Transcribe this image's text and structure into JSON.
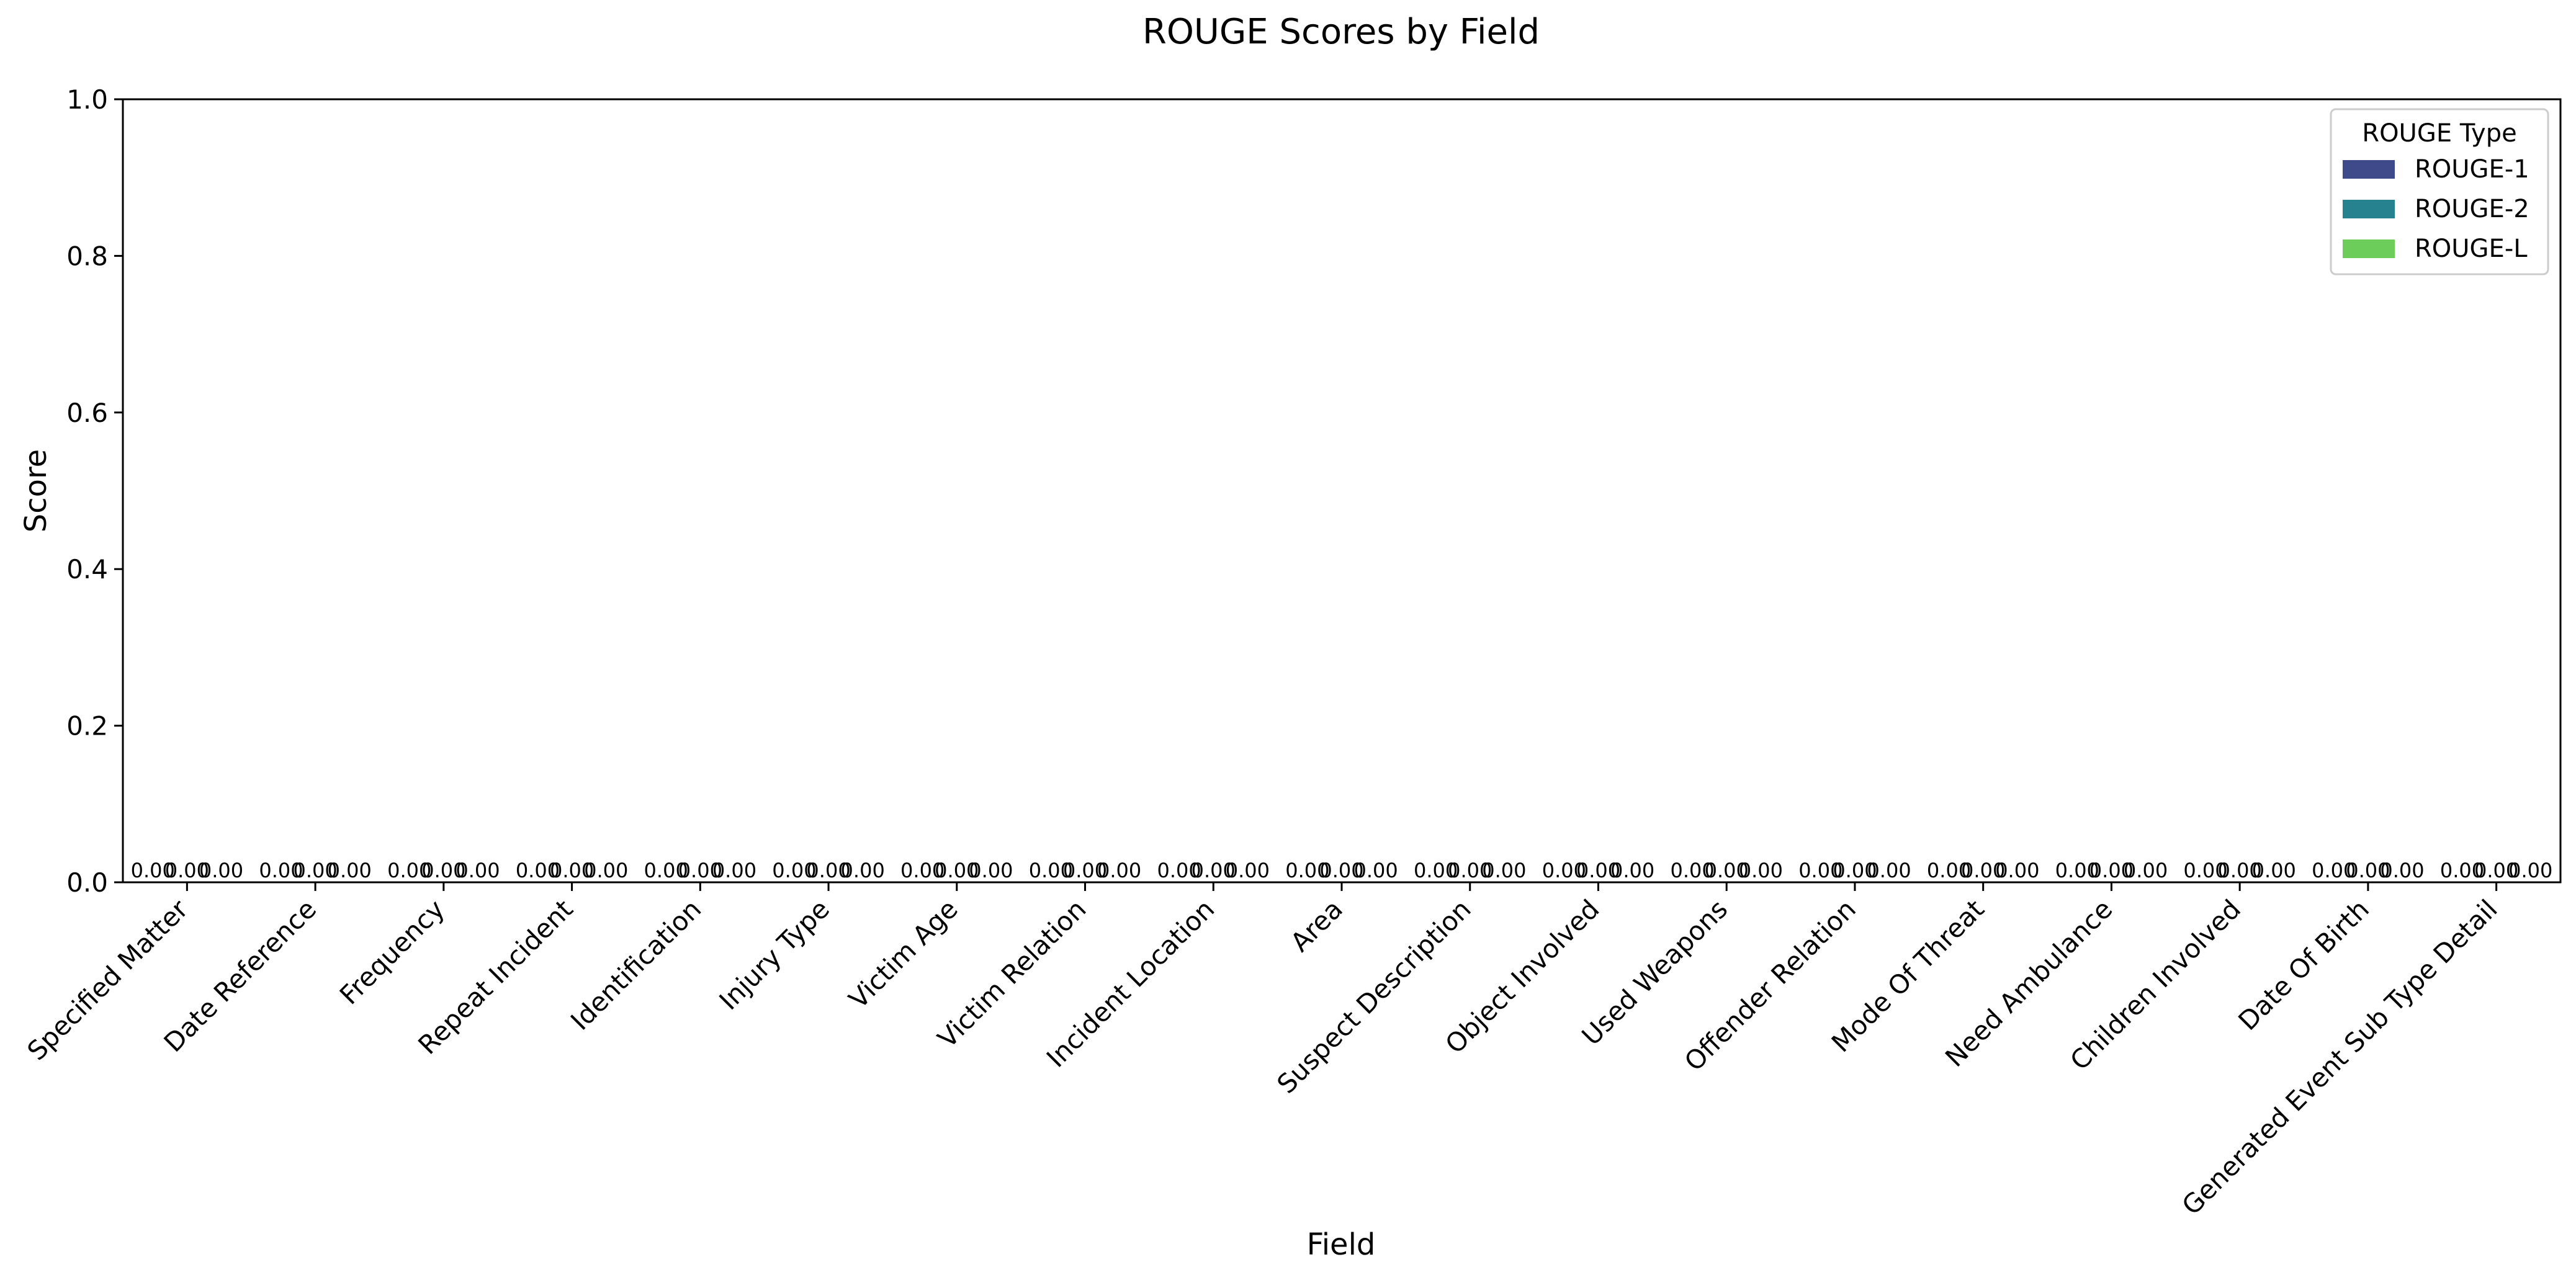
{
  "chart_data": {
    "type": "bar",
    "title": "ROUGE Scores by Field",
    "xlabel": "Field",
    "ylabel": "Score",
    "ylim": [
      0,
      1
    ],
    "yticks": [
      "0.0",
      "0.2",
      "0.4",
      "0.6",
      "0.8",
      "1.0"
    ],
    "categories": [
      "Specified Matter",
      "Date Reference",
      "Frequency",
      "Repeat Incident",
      "Identification",
      "Injury Type",
      "Victim Age",
      "Victim Relation",
      "Incident Location",
      "Area",
      "Suspect Description",
      "Object Involved",
      "Used Weapons",
      "Offender Relation",
      "Mode Of Threat",
      "Need Ambulance",
      "Children Involved",
      "Date Of Birth",
      "Generated Event Sub Type Detail"
    ],
    "legend": {
      "title": "ROUGE Type",
      "position": "top-right"
    },
    "series": [
      {
        "name": "ROUGE-1",
        "color": "#3e4a89",
        "values": [
          0,
          0,
          0,
          0,
          0,
          0,
          0,
          0,
          0,
          0,
          0,
          0,
          0,
          0,
          0,
          0,
          0,
          0,
          0
        ]
      },
      {
        "name": "ROUGE-2",
        "color": "#26828e",
        "values": [
          0,
          0,
          0,
          0,
          0,
          0,
          0,
          0,
          0,
          0,
          0,
          0,
          0,
          0,
          0,
          0,
          0,
          0,
          0
        ]
      },
      {
        "name": "ROUGE-L",
        "color": "#6ccd5a",
        "values": [
          0,
          0,
          0,
          0,
          0,
          0,
          0,
          0,
          0,
          0,
          0,
          0,
          0,
          0,
          0,
          0,
          0,
          0,
          0
        ]
      }
    ],
    "data_labels": "0.00",
    "grid": false
  }
}
